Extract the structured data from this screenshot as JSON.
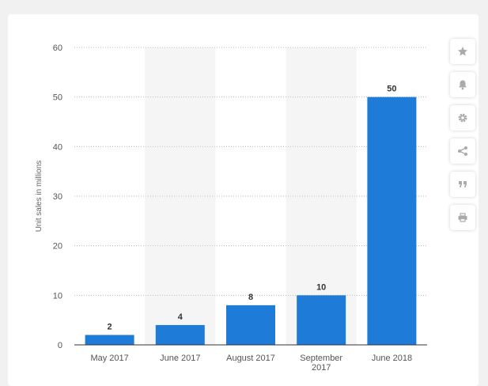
{
  "chart_data": {
    "type": "bar",
    "categories": [
      "May 2017",
      "June 2017",
      "August 2017",
      "September 2017",
      "June 2018"
    ],
    "category_lines": [
      [
        "May 2017"
      ],
      [
        "June 2017"
      ],
      [
        "August 2017"
      ],
      [
        "September",
        "2017"
      ],
      [
        "June 2018"
      ]
    ],
    "values": [
      2,
      4,
      8,
      10,
      50
    ],
    "value_labels": [
      "2",
      "4",
      "8",
      "10",
      "50"
    ],
    "ylabel": "Unit sales in millions",
    "ylim": [
      0,
      60
    ],
    "yticks": [
      0,
      10,
      20,
      30,
      40,
      50,
      60
    ],
    "grid": true,
    "bar_color": "#1f7bd8",
    "alt_band_color": "#f5f5f5"
  },
  "toolbar": {
    "buttons": [
      {
        "name": "favorite-button",
        "icon": "star-icon"
      },
      {
        "name": "notification-button",
        "icon": "bell-icon"
      },
      {
        "name": "settings-button",
        "icon": "gear-icon"
      },
      {
        "name": "share-button",
        "icon": "share-icon"
      },
      {
        "name": "cite-button",
        "icon": "quote-icon"
      },
      {
        "name": "print-button",
        "icon": "print-icon"
      }
    ]
  }
}
